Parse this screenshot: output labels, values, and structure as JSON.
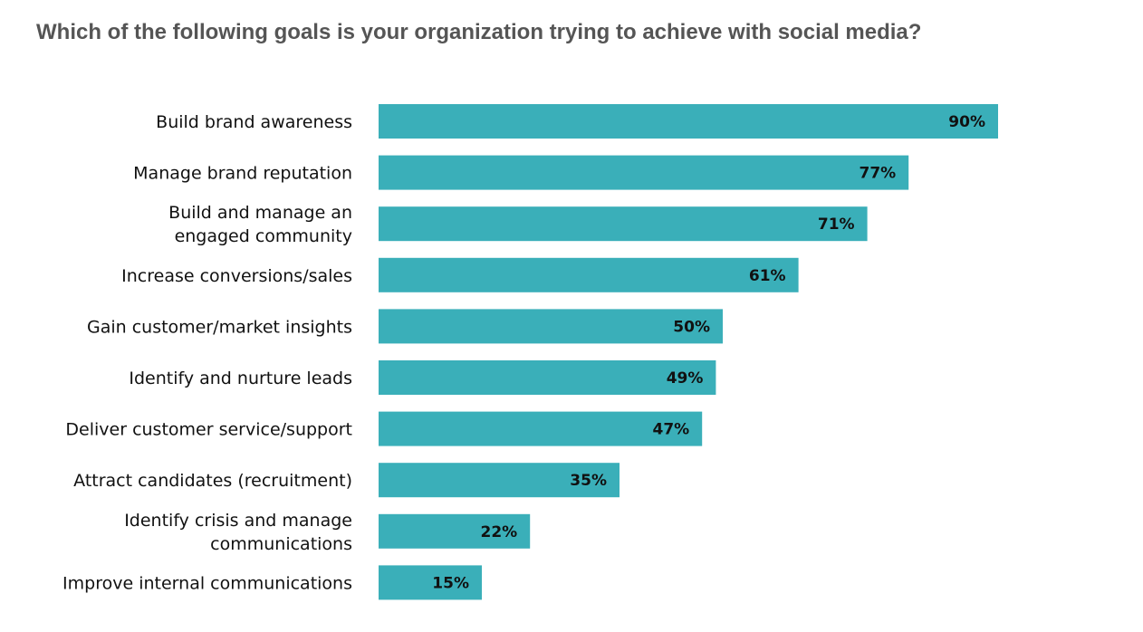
{
  "chart_data": {
    "type": "bar",
    "orientation": "horizontal",
    "title": "Which of the following goals is your organization trying to achieve with social media?",
    "categories": [
      [
        "Build brand awareness"
      ],
      [
        "Manage brand reputation"
      ],
      [
        "Build and manage an",
        "engaged community"
      ],
      [
        "Increase conversions/sales"
      ],
      [
        "Gain customer/market insights"
      ],
      [
        "Identify and nurture leads"
      ],
      [
        "Deliver customer service/support"
      ],
      [
        "Attract candidates (recruitment)"
      ],
      [
        "Identify crisis and manage",
        "communications"
      ],
      [
        "Improve internal communications"
      ]
    ],
    "values": [
      90,
      77,
      71,
      61,
      50,
      49,
      47,
      35,
      22,
      15
    ],
    "value_labels": [
      "90%",
      "77%",
      "71%",
      "61%",
      "50%",
      "49%",
      "47%",
      "35%",
      "22%",
      "15%"
    ],
    "unit": "%",
    "xlim": [
      0,
      100
    ],
    "bar_color": "#3aafb9",
    "grid": false,
    "legend": false
  }
}
